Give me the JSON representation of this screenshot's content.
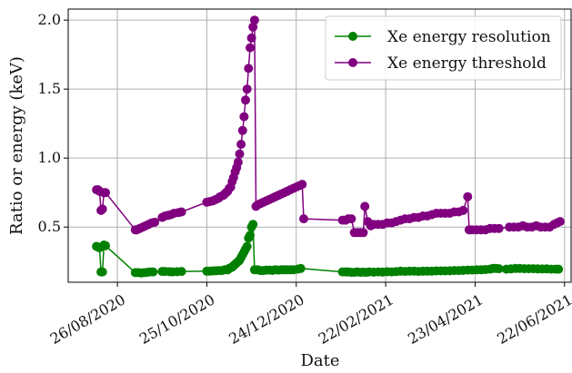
{
  "chart_data": {
    "type": "line",
    "xlabel": "Date",
    "ylabel": "Ratio or energy (keV)",
    "ylim": [
      0.1,
      2.08
    ],
    "xlim": [
      "2020-07-24",
      "2021-06-27"
    ],
    "grid": true,
    "legend_position": "top-right",
    "x_ticks": [
      "26/08/2020",
      "25/10/2020",
      "24/12/2020",
      "22/02/2021",
      "23/04/2021",
      "22/06/2021"
    ],
    "x_tick_dates": [
      "2020-08-26",
      "2020-10-25",
      "2020-12-24",
      "2021-02-22",
      "2021-04-23",
      "2021-06-22"
    ],
    "y_ticks": [
      "0.5",
      "1.0",
      "1.5",
      "2.0"
    ],
    "y_tick_values": [
      0.5,
      1.0,
      1.5,
      2.0
    ],
    "series": [
      {
        "name": "Xe energy resolution",
        "color": "#008000",
        "points": [
          [
            "2020-08-12",
            0.36
          ],
          [
            "2020-08-13",
            0.355
          ],
          [
            "2020-08-14",
            0.35
          ],
          [
            "2020-08-15",
            0.175
          ],
          [
            "2020-08-16",
            0.175
          ],
          [
            "2020-08-17",
            0.37
          ],
          [
            "2020-08-18",
            0.365
          ],
          [
            "2020-09-07",
            0.17
          ],
          [
            "2020-09-09",
            0.17
          ],
          [
            "2020-09-11",
            0.168
          ],
          [
            "2020-09-13",
            0.17
          ],
          [
            "2020-09-15",
            0.172
          ],
          [
            "2020-09-17",
            0.175
          ],
          [
            "2020-09-19",
            0.175
          ],
          [
            "2020-09-25",
            0.178
          ],
          [
            "2020-09-27",
            0.178
          ],
          [
            "2020-09-30",
            0.176
          ],
          [
            "2020-10-02",
            0.175
          ],
          [
            "2020-10-05",
            0.176
          ],
          [
            "2020-10-08",
            0.178
          ],
          [
            "2020-10-25",
            0.18
          ],
          [
            "2020-10-27",
            0.18
          ],
          [
            "2020-10-29",
            0.182
          ],
          [
            "2020-10-31",
            0.183
          ],
          [
            "2020-11-02",
            0.185
          ],
          [
            "2020-11-04",
            0.185
          ],
          [
            "2020-11-06",
            0.19
          ],
          [
            "2020-11-08",
            0.19
          ],
          [
            "2020-11-09",
            0.2
          ],
          [
            "2020-11-10",
            0.205
          ],
          [
            "2020-11-11",
            0.21
          ],
          [
            "2020-11-12",
            0.22
          ],
          [
            "2020-11-13",
            0.23
          ],
          [
            "2020-11-14",
            0.24
          ],
          [
            "2020-11-15",
            0.25
          ],
          [
            "2020-11-16",
            0.26
          ],
          [
            "2020-11-17",
            0.28
          ],
          [
            "2020-11-18",
            0.3
          ],
          [
            "2020-11-19",
            0.32
          ],
          [
            "2020-11-20",
            0.34
          ],
          [
            "2020-11-21",
            0.36
          ],
          [
            "2020-11-22",
            0.42
          ],
          [
            "2020-11-23",
            0.44
          ],
          [
            "2020-11-24",
            0.5
          ],
          [
            "2020-11-25",
            0.52
          ],
          [
            "2020-11-26",
            0.19
          ],
          [
            "2020-11-28",
            0.19
          ],
          [
            "2020-11-30",
            0.185
          ],
          [
            "2020-12-02",
            0.185
          ],
          [
            "2020-12-04",
            0.188
          ],
          [
            "2020-12-06",
            0.188
          ],
          [
            "2020-12-08",
            0.186
          ],
          [
            "2020-12-10",
            0.19
          ],
          [
            "2020-12-12",
            0.188
          ],
          [
            "2020-12-14",
            0.19
          ],
          [
            "2020-12-16",
            0.19
          ],
          [
            "2020-12-18",
            0.19
          ],
          [
            "2020-12-20",
            0.19
          ],
          [
            "2020-12-22",
            0.19
          ],
          [
            "2020-12-25",
            0.195
          ],
          [
            "2020-12-27",
            0.2
          ],
          [
            "2021-01-24",
            0.175
          ],
          [
            "2021-01-26",
            0.175
          ],
          [
            "2021-01-28",
            0.175
          ],
          [
            "2021-01-30",
            0.172
          ],
          [
            "2021-02-01",
            0.172
          ],
          [
            "2021-02-03",
            0.175
          ],
          [
            "2021-02-05",
            0.172
          ],
          [
            "2021-02-07",
            0.173
          ],
          [
            "2021-02-09",
            0.172
          ],
          [
            "2021-02-11",
            0.175
          ],
          [
            "2021-02-14",
            0.173
          ],
          [
            "2021-02-17",
            0.175
          ],
          [
            "2021-02-20",
            0.174
          ],
          [
            "2021-02-23",
            0.176
          ],
          [
            "2021-02-26",
            0.175
          ],
          [
            "2021-03-01",
            0.177
          ],
          [
            "2021-03-04",
            0.18
          ],
          [
            "2021-03-07",
            0.178
          ],
          [
            "2021-03-10",
            0.18
          ],
          [
            "2021-03-13",
            0.18
          ],
          [
            "2021-03-16",
            0.178
          ],
          [
            "2021-03-19",
            0.18
          ],
          [
            "2021-03-22",
            0.18
          ],
          [
            "2021-03-25",
            0.18
          ],
          [
            "2021-03-28",
            0.182
          ],
          [
            "2021-03-31",
            0.182
          ],
          [
            "2021-04-03",
            0.182
          ],
          [
            "2021-04-06",
            0.183
          ],
          [
            "2021-04-09",
            0.185
          ],
          [
            "2021-04-12",
            0.185
          ],
          [
            "2021-04-15",
            0.186
          ],
          [
            "2021-04-18",
            0.188
          ],
          [
            "2021-04-21",
            0.188
          ],
          [
            "2021-04-24",
            0.19
          ],
          [
            "2021-04-27",
            0.19
          ],
          [
            "2021-04-30",
            0.192
          ],
          [
            "2021-05-03",
            0.195
          ],
          [
            "2021-05-05",
            0.2
          ],
          [
            "2021-05-07",
            0.2
          ],
          [
            "2021-05-09",
            0.198
          ],
          [
            "2021-05-14",
            0.195
          ],
          [
            "2021-05-17",
            0.197
          ],
          [
            "2021-05-20",
            0.2
          ],
          [
            "2021-05-23",
            0.2
          ],
          [
            "2021-05-26",
            0.198
          ],
          [
            "2021-05-29",
            0.198
          ],
          [
            "2021-06-01",
            0.198
          ],
          [
            "2021-06-04",
            0.197
          ],
          [
            "2021-06-07",
            0.196
          ],
          [
            "2021-06-10",
            0.197
          ],
          [
            "2021-06-13",
            0.195
          ],
          [
            "2021-06-16",
            0.195
          ],
          [
            "2021-06-18",
            0.195
          ]
        ]
      },
      {
        "name": "Xe energy threshold",
        "color": "#800080",
        "points": [
          [
            "2020-08-12",
            0.77
          ],
          [
            "2020-08-13",
            0.77
          ],
          [
            "2020-08-14",
            0.76
          ],
          [
            "2020-08-15",
            0.62
          ],
          [
            "2020-08-16",
            0.63
          ],
          [
            "2020-08-17",
            0.75
          ],
          [
            "2020-08-18",
            0.75
          ],
          [
            "2020-09-07",
            0.48
          ],
          [
            "2020-09-08",
            0.48
          ],
          [
            "2020-09-10",
            0.49
          ],
          [
            "2020-09-12",
            0.5
          ],
          [
            "2020-09-14",
            0.51
          ],
          [
            "2020-09-16",
            0.52
          ],
          [
            "2020-09-18",
            0.53
          ],
          [
            "2020-09-20",
            0.535
          ],
          [
            "2020-09-25",
            0.57
          ],
          [
            "2020-09-27",
            0.58
          ],
          [
            "2020-09-29",
            0.585
          ],
          [
            "2020-10-01",
            0.59
          ],
          [
            "2020-10-03",
            0.6
          ],
          [
            "2020-10-06",
            0.605
          ],
          [
            "2020-10-08",
            0.61
          ],
          [
            "2020-10-25",
            0.68
          ],
          [
            "2020-10-27",
            0.685
          ],
          [
            "2020-10-29",
            0.69
          ],
          [
            "2020-10-31",
            0.7
          ],
          [
            "2020-11-02",
            0.71
          ],
          [
            "2020-11-03",
            0.72
          ],
          [
            "2020-11-05",
            0.73
          ],
          [
            "2020-11-06",
            0.74
          ],
          [
            "2020-11-07",
            0.75
          ],
          [
            "2020-11-08",
            0.76
          ],
          [
            "2020-11-09",
            0.78
          ],
          [
            "2020-11-10",
            0.79
          ],
          [
            "2020-11-11",
            0.83
          ],
          [
            "2020-11-12",
            0.86
          ],
          [
            "2020-11-13",
            0.9
          ],
          [
            "2020-11-14",
            0.93
          ],
          [
            "2020-11-15",
            0.97
          ],
          [
            "2020-11-16",
            1.03
          ],
          [
            "2020-11-17",
            1.1
          ],
          [
            "2020-11-18",
            1.2
          ],
          [
            "2020-11-19",
            1.3
          ],
          [
            "2020-11-20",
            1.42
          ],
          [
            "2020-11-21",
            1.5
          ],
          [
            "2020-11-22",
            1.65
          ],
          [
            "2020-11-23",
            1.8
          ],
          [
            "2020-11-24",
            1.87
          ],
          [
            "2020-11-25",
            1.95
          ],
          [
            "2020-11-26",
            2.0
          ],
          [
            "2020-11-27",
            0.65
          ],
          [
            "2020-11-28",
            0.66
          ],
          [
            "2020-11-30",
            0.67
          ],
          [
            "2020-12-02",
            0.68
          ],
          [
            "2020-12-04",
            0.69
          ],
          [
            "2020-12-06",
            0.7
          ],
          [
            "2020-12-08",
            0.71
          ],
          [
            "2020-12-10",
            0.72
          ],
          [
            "2020-12-12",
            0.73
          ],
          [
            "2020-12-14",
            0.74
          ],
          [
            "2020-12-16",
            0.75
          ],
          [
            "2020-12-18",
            0.76
          ],
          [
            "2020-12-20",
            0.77
          ],
          [
            "2020-12-22",
            0.78
          ],
          [
            "2020-12-24",
            0.79
          ],
          [
            "2020-12-26",
            0.8
          ],
          [
            "2020-12-28",
            0.81
          ],
          [
            "2020-12-29",
            0.56
          ],
          [
            "2021-01-24",
            0.55
          ],
          [
            "2021-01-26",
            0.55
          ],
          [
            "2021-01-28",
            0.56
          ],
          [
            "2021-01-30",
            0.56
          ],
          [
            "2021-02-01",
            0.46
          ],
          [
            "2021-02-03",
            0.46
          ],
          [
            "2021-02-05",
            0.46
          ],
          [
            "2021-02-07",
            0.46
          ],
          [
            "2021-02-08",
            0.65
          ],
          [
            "2021-02-10",
            0.54
          ],
          [
            "2021-02-12",
            0.51
          ],
          [
            "2021-02-14",
            0.52
          ],
          [
            "2021-02-17",
            0.52
          ],
          [
            "2021-02-20",
            0.52
          ],
          [
            "2021-02-23",
            0.53
          ],
          [
            "2021-02-26",
            0.53
          ],
          [
            "2021-03-01",
            0.54
          ],
          [
            "2021-03-04",
            0.55
          ],
          [
            "2021-03-07",
            0.56
          ],
          [
            "2021-03-10",
            0.56
          ],
          [
            "2021-03-13",
            0.57
          ],
          [
            "2021-03-16",
            0.57
          ],
          [
            "2021-03-19",
            0.58
          ],
          [
            "2021-03-22",
            0.58
          ],
          [
            "2021-03-25",
            0.59
          ],
          [
            "2021-03-28",
            0.6
          ],
          [
            "2021-03-31",
            0.6
          ],
          [
            "2021-04-03",
            0.6
          ],
          [
            "2021-04-06",
            0.6
          ],
          [
            "2021-04-09",
            0.61
          ],
          [
            "2021-04-12",
            0.61
          ],
          [
            "2021-04-15",
            0.62
          ],
          [
            "2021-04-18",
            0.72
          ],
          [
            "2021-04-19",
            0.48
          ],
          [
            "2021-04-21",
            0.48
          ],
          [
            "2021-04-24",
            0.48
          ],
          [
            "2021-04-27",
            0.48
          ],
          [
            "2021-04-30",
            0.48
          ],
          [
            "2021-05-03",
            0.49
          ],
          [
            "2021-05-06",
            0.49
          ],
          [
            "2021-05-09",
            0.49
          ],
          [
            "2021-05-16",
            0.5
          ],
          [
            "2021-05-19",
            0.5
          ],
          [
            "2021-05-22",
            0.5
          ],
          [
            "2021-05-25",
            0.51
          ],
          [
            "2021-05-28",
            0.5
          ],
          [
            "2021-05-31",
            0.5
          ],
          [
            "2021-06-03",
            0.51
          ],
          [
            "2021-06-06",
            0.5
          ],
          [
            "2021-06-09",
            0.5
          ],
          [
            "2021-06-12",
            0.5
          ],
          [
            "2021-06-15",
            0.52
          ],
          [
            "2021-06-17",
            0.53
          ],
          [
            "2021-06-19",
            0.54
          ]
        ]
      }
    ]
  }
}
